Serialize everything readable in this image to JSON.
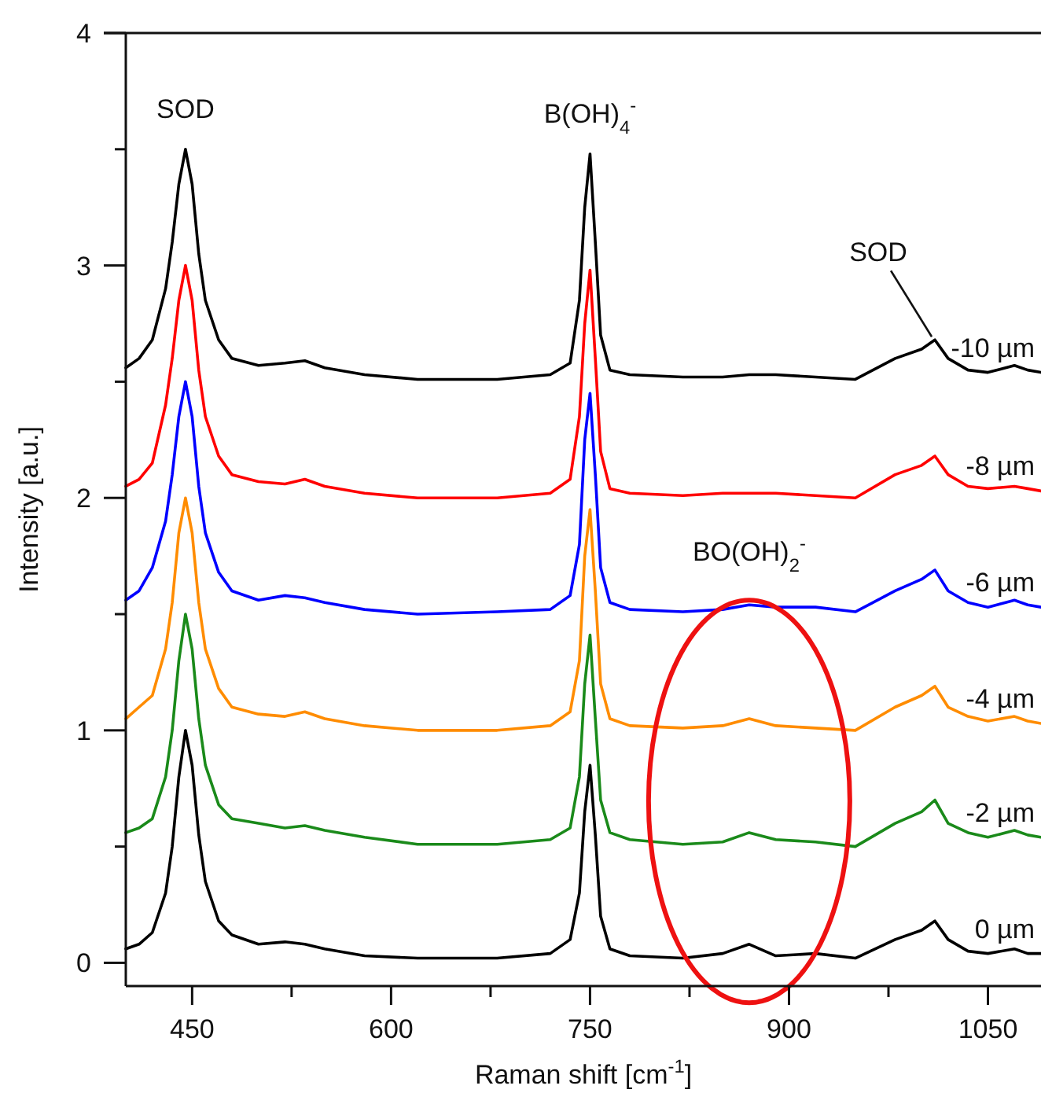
{
  "chart_data": {
    "type": "line",
    "xlabel": "Raman shift [cm$^{-1}$]",
    "ylabel": "Intensity [a.u.]",
    "x": [
      400,
      410,
      420,
      430,
      435,
      440,
      445,
      450,
      455,
      460,
      470,
      480,
      500,
      520,
      535,
      550,
      580,
      620,
      680,
      720,
      735,
      742,
      746,
      750,
      754,
      758,
      765,
      780,
      820,
      850,
      870,
      890,
      920,
      950,
      980,
      1000,
      1010,
      1020,
      1035,
      1050,
      1070,
      1080,
      1090
    ],
    "series": [
      {
        "name": "0 µm",
        "color": "#000000",
        "values": [
          0.06,
          0.08,
          0.13,
          0.3,
          0.5,
          0.8,
          1.0,
          0.85,
          0.55,
          0.35,
          0.18,
          0.12,
          0.08,
          0.09,
          0.08,
          0.06,
          0.03,
          0.02,
          0.02,
          0.04,
          0.1,
          0.3,
          0.65,
          0.85,
          0.55,
          0.2,
          0.06,
          0.03,
          0.02,
          0.04,
          0.08,
          0.03,
          0.04,
          0.02,
          0.1,
          0.14,
          0.18,
          0.1,
          0.05,
          0.04,
          0.06,
          0.04,
          0.04
        ]
      },
      {
        "name": "-2 µm",
        "color": "#1a8a1a",
        "values": [
          0.56,
          0.58,
          0.62,
          0.8,
          1.0,
          1.3,
          1.5,
          1.35,
          1.05,
          0.85,
          0.68,
          0.62,
          0.6,
          0.58,
          0.59,
          0.57,
          0.54,
          0.51,
          0.51,
          0.53,
          0.58,
          0.8,
          1.2,
          1.41,
          1.05,
          0.7,
          0.56,
          0.53,
          0.51,
          0.52,
          0.56,
          0.53,
          0.52,
          0.5,
          0.6,
          0.65,
          0.7,
          0.6,
          0.56,
          0.54,
          0.57,
          0.55,
          0.54
        ]
      },
      {
        "name": "-4 µm",
        "color": "#ff8c00",
        "values": [
          1.05,
          1.1,
          1.15,
          1.35,
          1.55,
          1.85,
          2.0,
          1.85,
          1.55,
          1.35,
          1.18,
          1.1,
          1.07,
          1.06,
          1.08,
          1.05,
          1.02,
          1.0,
          1.0,
          1.02,
          1.08,
          1.3,
          1.75,
          1.95,
          1.6,
          1.2,
          1.05,
          1.02,
          1.01,
          1.02,
          1.05,
          1.02,
          1.01,
          1.0,
          1.1,
          1.15,
          1.19,
          1.1,
          1.06,
          1.04,
          1.06,
          1.04,
          1.03
        ]
      },
      {
        "name": "-6 µm",
        "color": "#0000ff",
        "values": [
          1.56,
          1.6,
          1.7,
          1.9,
          2.1,
          2.35,
          2.5,
          2.35,
          2.05,
          1.85,
          1.68,
          1.6,
          1.56,
          1.58,
          1.57,
          1.55,
          1.52,
          1.5,
          1.51,
          1.52,
          1.58,
          1.8,
          2.25,
          2.45,
          2.1,
          1.7,
          1.55,
          1.52,
          1.51,
          1.52,
          1.54,
          1.53,
          1.53,
          1.51,
          1.6,
          1.65,
          1.69,
          1.6,
          1.55,
          1.53,
          1.56,
          1.54,
          1.53
        ]
      },
      {
        "name": "-8 µm",
        "color": "#ff0000",
        "values": [
          2.05,
          2.08,
          2.15,
          2.4,
          2.6,
          2.85,
          3.0,
          2.85,
          2.55,
          2.35,
          2.18,
          2.1,
          2.07,
          2.06,
          2.08,
          2.05,
          2.02,
          2.0,
          2.0,
          2.02,
          2.08,
          2.35,
          2.75,
          2.98,
          2.6,
          2.2,
          2.04,
          2.02,
          2.01,
          2.02,
          2.02,
          2.02,
          2.01,
          2.0,
          2.1,
          2.14,
          2.18,
          2.1,
          2.05,
          2.04,
          2.05,
          2.04,
          2.03
        ]
      },
      {
        "name": "-10 µm",
        "color": "#000000",
        "values": [
          2.56,
          2.6,
          2.68,
          2.9,
          3.1,
          3.35,
          3.5,
          3.35,
          3.05,
          2.85,
          2.68,
          2.6,
          2.57,
          2.58,
          2.59,
          2.56,
          2.53,
          2.51,
          2.51,
          2.53,
          2.58,
          2.85,
          3.25,
          3.48,
          3.1,
          2.7,
          2.55,
          2.53,
          2.52,
          2.52,
          2.53,
          2.53,
          2.52,
          2.51,
          2.6,
          2.64,
          2.68,
          2.6,
          2.55,
          2.54,
          2.57,
          2.55,
          2.54
        ]
      }
    ],
    "xlim": [
      400,
      1090
    ],
    "ylim": [
      -0.1,
      4
    ],
    "xticks": [
      450,
      {
        "value": 525,
        "label": null
      },
      600,
      {
        "value": 675,
        "label": null
      },
      750,
      {
        "value": 825,
        "label": null
      },
      900,
      {
        "value": 975,
        "label": null
      },
      1050
    ],
    "yticks": [
      0,
      {
        "value": 0.5,
        "label": null
      },
      1,
      {
        "value": 1.5,
        "label": null
      },
      2,
      {
        "value": 2.5,
        "label": null
      },
      3,
      {
        "value": 3.5,
        "label": null
      },
      4
    ],
    "annotations": [
      {
        "text": "SOD",
        "x": 445,
        "y": 3.5
      },
      {
        "text": "B(OH)$_{4}$$^{-}$",
        "x": 750,
        "y": 3.48
      },
      {
        "text": "SOD",
        "x": 1010,
        "y": 2.68
      },
      {
        "text": "BO(OH)$_{2}$$^{-}$",
        "x": 870,
        "y": 1.54
      }
    ]
  }
}
